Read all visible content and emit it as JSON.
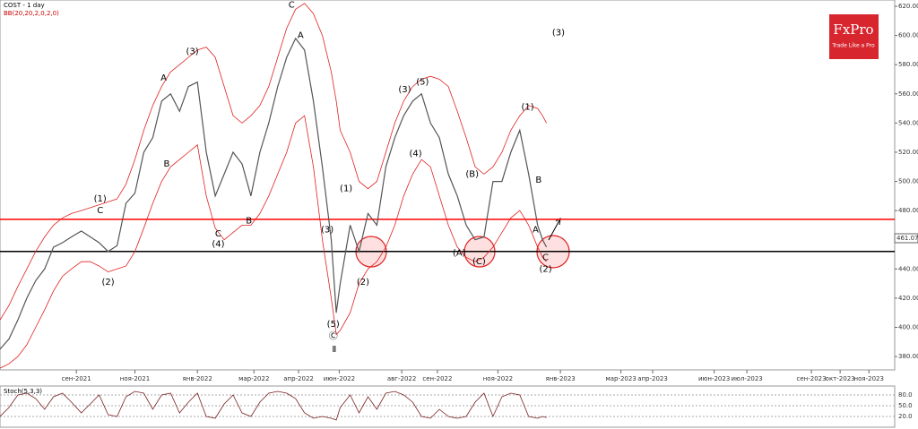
{
  "chart_data": {
    "type": "line",
    "title": "COST - 1 day",
    "subtitle": "BB(20,20,2,0,2,0)",
    "logo": "FxPro",
    "logo_tagline": "Trade Like a Pro",
    "current_price": 461.07,
    "x": [
      -77,
      -68,
      -59,
      -50,
      -41,
      -32,
      -23,
      -14,
      -5,
      5,
      14,
      23,
      32,
      41,
      50,
      59,
      68,
      77,
      86,
      95,
      104,
      113,
      122,
      131,
      140,
      149,
      158,
      167,
      176,
      185,
      194,
      203,
      212,
      221,
      230,
      239,
      248,
      257,
      262,
      266,
      276,
      285,
      294,
      303,
      312,
      321,
      330,
      339,
      348,
      357,
      366,
      375,
      384,
      393,
      402,
      411,
      420,
      429,
      438,
      447,
      456,
      465,
      470,
      474
    ],
    "series": [
      {
        "name": "COST",
        "color": "#555555",
        "values": [
          385,
          392,
          405,
          420,
          432,
          440,
          455,
          458,
          462,
          466,
          462,
          458,
          452,
          456,
          485,
          492,
          520,
          530,
          555,
          560,
          548,
          565,
          568,
          520,
          490,
          505,
          520,
          512,
          490,
          520,
          540,
          565,
          585,
          598,
          590,
          555,
          510,
          460,
          410,
          430,
          470,
          452,
          478,
          470,
          510,
          530,
          545,
          555,
          560,
          540,
          530,
          505,
          490,
          470,
          460,
          462,
          500,
          500,
          520,
          535,
          505,
          470,
          460,
          455
        ]
      },
      {
        "name": "BB upper",
        "color": "#e02020",
        "values": [
          405,
          415,
          428,
          440,
          452,
          462,
          470,
          475,
          478,
          480,
          482,
          484,
          486,
          488,
          498,
          515,
          535,
          552,
          565,
          575,
          580,
          585,
          590,
          592,
          585,
          565,
          545,
          540,
          545,
          552,
          565,
          585,
          605,
          618,
          622,
          615,
          600,
          575,
          555,
          535,
          520,
          500,
          495,
          500,
          520,
          540,
          555,
          565,
          570,
          572,
          570,
          565,
          548,
          530,
          510,
          505,
          510,
          520,
          535,
          545,
          552,
          550,
          545,
          540
        ]
      },
      {
        "name": "BB lower",
        "color": "#e02020",
        "values": [
          372,
          375,
          380,
          388,
          400,
          412,
          425,
          435,
          440,
          445,
          445,
          442,
          438,
          440,
          442,
          452,
          468,
          485,
          500,
          510,
          515,
          520,
          525,
          490,
          468,
          460,
          465,
          470,
          470,
          478,
          490,
          505,
          520,
          540,
          545,
          510,
          460,
          420,
          395,
          398,
          410,
          430,
          440,
          445,
          455,
          470,
          490,
          505,
          515,
          510,
          490,
          470,
          455,
          448,
          445,
          448,
          455,
          465,
          475,
          480,
          470,
          455,
          448,
          445
        ]
      },
      {
        "name": "Stoch",
        "color": "#7a2020",
        "axis": "y2",
        "values": [
          20,
          45,
          80,
          85,
          70,
          40,
          75,
          85,
          60,
          30,
          55,
          80,
          25,
          20,
          75,
          90,
          85,
          40,
          80,
          85,
          30,
          60,
          85,
          20,
          15,
          55,
          80,
          30,
          20,
          60,
          85,
          90,
          85,
          70,
          30,
          15,
          20,
          15,
          10,
          45,
          80,
          30,
          75,
          40,
          85,
          90,
          80,
          60,
          20,
          15,
          40,
          20,
          15,
          20,
          60,
          85,
          20,
          75,
          85,
          80,
          20,
          15,
          20,
          17
        ]
      }
    ],
    "xlim": [
      -77,
      825
    ],
    "xticks": [
      {
        "value": 0,
        "label": "сен-2021"
      },
      {
        "value": 59,
        "label": "ноя-2021"
      },
      {
        "value": 122,
        "label": "янв-2022"
      },
      {
        "value": 179,
        "label": "мар-2022"
      },
      {
        "value": 224,
        "label": "апр-2022"
      },
      {
        "value": 265,
        "label": "июн-2022"
      },
      {
        "value": 328,
        "label": "авг-2022"
      },
      {
        "value": 364,
        "label": "сен-2022"
      },
      {
        "value": 425,
        "label": "ноя-2022"
      },
      {
        "value": 488,
        "label": "янв-2023"
      },
      {
        "value": 549,
        "label": "мар-2023"
      },
      {
        "value": 581,
        "label": "апр-2023"
      },
      {
        "value": 643,
        "label": "июн-2023"
      },
      {
        "value": 676,
        "label": "июл-2023"
      },
      {
        "value": 741,
        "label": "сен-2023"
      },
      {
        "value": 770,
        "label": "окт-2023"
      },
      {
        "value": 799,
        "label": "ноя-2023"
      }
    ],
    "ylim": [
      376,
      624
    ],
    "yticks": [
      {
        "value": 380,
        "label": "380.00"
      },
      {
        "value": 400,
        "label": "400.00"
      },
      {
        "value": 420,
        "label": "420.00"
      },
      {
        "value": 440,
        "label": "440.00"
      },
      {
        "value": 460,
        "label": "460.00"
      },
      {
        "value": 480,
        "label": "480.00"
      },
      {
        "value": 500,
        "label": "500.00"
      },
      {
        "value": 520,
        "label": "520.00"
      },
      {
        "value": 540,
        "label": "540.00"
      },
      {
        "value": 560,
        "label": "560.00"
      },
      {
        "value": 580,
        "label": "580.00"
      },
      {
        "value": 600,
        "label": "600.00"
      },
      {
        "value": 620,
        "label": "620.00"
      }
    ],
    "y2_title": "Stoch(5,3,3)",
    "y2lim": [
      0,
      100
    ],
    "y2ticks": [
      {
        "value": 80,
        "label": "80.0"
      },
      {
        "value": 50,
        "label": "50.0"
      },
      {
        "value": 20,
        "label": "20.0"
      }
    ],
    "levels": [
      {
        "value": 474,
        "color": "#ff0000"
      },
      {
        "value": 452,
        "color": "#000000"
      }
    ],
    "annotations": [
      {
        "text": "(3)",
        "x": 117,
        "y": 589
      },
      {
        "text": "(3)",
        "x": 486,
        "y": 602
      },
      {
        "text": "(1)",
        "x": 24,
        "y": 488
      },
      {
        "text": "C",
        "x": 24,
        "y": 480
      },
      {
        "text": "(2)",
        "x": 32,
        "y": 431
      },
      {
        "text": "A",
        "x": 88,
        "y": 571
      },
      {
        "text": "B",
        "x": 91,
        "y": 512
      },
      {
        "text": "(4)",
        "x": 143,
        "y": 457
      },
      {
        "text": "C",
        "x": 143,
        "y": 464
      },
      {
        "text": "B",
        "x": 174,
        "y": 473
      },
      {
        "text": "C",
        "x": 217,
        "y": 621
      },
      {
        "text": "A",
        "x": 226,
        "y": 600
      },
      {
        "text": "(5)",
        "x": 259,
        "y": 402
      },
      {
        "text": "Ⓒ",
        "x": 259,
        "y": 394
      },
      {
        "text": "Ⅱ",
        "x": 260,
        "y": 385
      },
      {
        "text": "(3)",
        "x": 253,
        "y": 467
      },
      {
        "text": "(1)",
        "x": 272,
        "y": 495
      },
      {
        "text": "(2)",
        "x": 289,
        "y": 431
      },
      {
        "text": "(3)",
        "x": 331,
        "y": 563
      },
      {
        "text": "(5)",
        "x": 349,
        "y": 568
      },
      {
        "text": "(4)",
        "x": 342,
        "y": 519
      },
      {
        "text": "(A)",
        "x": 386,
        "y": 451
      },
      {
        "text": "(B)",
        "x": 399,
        "y": 505
      },
      {
        "text": "(C)",
        "x": 406,
        "y": 445
      },
      {
        "text": "(1)",
        "x": 455,
        "y": 551
      },
      {
        "text": "(2)",
        "x": 473,
        "y": 440
      },
      {
        "text": "C",
        "x": 473,
        "y": 448
      },
      {
        "text": "B",
        "x": 466,
        "y": 501
      },
      {
        "text": "A",
        "x": 463,
        "y": 467
      }
    ]
  }
}
